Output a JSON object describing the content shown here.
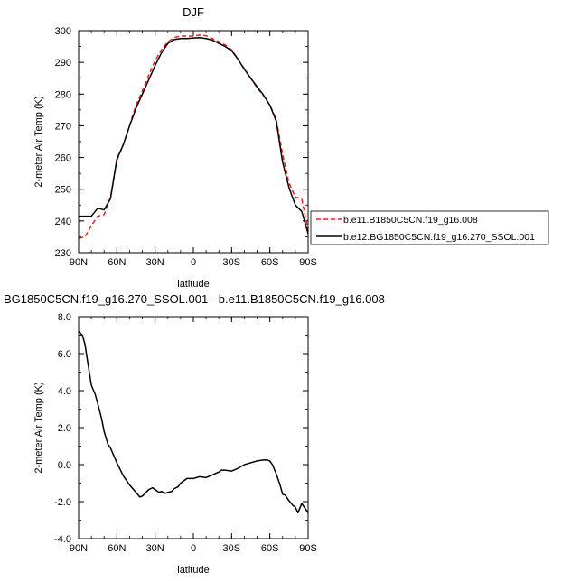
{
  "chart_data": [
    {
      "type": "line",
      "title": "DJF",
      "xlabel": "latitude",
      "ylabel": "2-meter Air Temp (K)",
      "xlim": [
        90,
        -90
      ],
      "ylim": [
        230,
        300
      ],
      "xtick_values": [
        90,
        60,
        30,
        0,
        -30,
        -60,
        -90
      ],
      "xtick_labels": [
        "90N",
        "60N",
        "30N",
        "0",
        "30S",
        "60S",
        "90S"
      ],
      "ytick_values": [
        230,
        240,
        250,
        260,
        270,
        280,
        290,
        300
      ],
      "ytick_labels": [
        "230",
        "240",
        "250",
        "260",
        "270",
        "280",
        "290",
        "300"
      ],
      "grid": false,
      "legend": "right",
      "series": [
        {
          "name": "b.e11.B1850C5CN.f19_g16.008",
          "color": "#e8211d",
          "dash": "dashed",
          "x": [
            90,
            85,
            80,
            75,
            70,
            65,
            60,
            55,
            50,
            45,
            40,
            35,
            30,
            25,
            20,
            15,
            10,
            5,
            0,
            -5,
            -10,
            -15,
            -20,
            -25,
            -30,
            -35,
            -40,
            -45,
            -50,
            -55,
            -60,
            -65,
            -70,
            -75,
            -80,
            -85,
            -90
          ],
          "y": [
            234.5,
            235,
            238.5,
            241.5,
            242,
            247.5,
            259,
            264,
            270,
            276.5,
            281,
            286,
            290.5,
            294,
            296.5,
            297.8,
            298.3,
            298.3,
            298.3,
            298.6,
            298.4,
            297.5,
            296.5,
            295.5,
            294,
            291,
            288,
            285,
            282,
            279.5,
            276.5,
            272,
            261,
            252,
            247.5,
            247,
            237
          ]
        },
        {
          "name": "b.e12.BG1850C5CN.f19_g16.270_SSOL.001",
          "color": "#000000",
          "dash": "solid",
          "x": [
            90,
            85,
            80,
            75,
            70,
            65,
            60,
            55,
            50,
            45,
            40,
            35,
            30,
            25,
            20,
            15,
            10,
            5,
            0,
            -5,
            -10,
            -15,
            -20,
            -25,
            -30,
            -35,
            -40,
            -45,
            -50,
            -55,
            -60,
            -65,
            -70,
            -75,
            -80,
            -85,
            -90
          ],
          "y": [
            241.5,
            241.5,
            241.5,
            244,
            243.5,
            247,
            259.5,
            264,
            270,
            275.5,
            280,
            284.5,
            289,
            293,
            296,
            297.2,
            297.5,
            297.5,
            297.7,
            297.8,
            297.5,
            297,
            296,
            295,
            293.7,
            291,
            287.8,
            285,
            282.3,
            279.7,
            276.5,
            271.5,
            258.5,
            250.5,
            245,
            243,
            236
          ]
        }
      ]
    },
    {
      "type": "line",
      "title": "BG1850C5CN.f19_g16.270_SSOL.001 - b.e11.B1850C5CN.f19_g16.008",
      "xlabel": "latitude",
      "ylabel": "2-meter Air Temp (K)",
      "xlim": [
        90,
        -90
      ],
      "ylim": [
        -4,
        8
      ],
      "xtick_values": [
        90,
        60,
        30,
        0,
        -30,
        -60,
        -90
      ],
      "xtick_labels": [
        "90N",
        "60N",
        "30N",
        "0",
        "30S",
        "60S",
        "90S"
      ],
      "ytick_values": [
        -4,
        -2,
        0,
        2,
        4,
        6,
        8
      ],
      "ytick_labels": [
        "-4.0",
        "-2.0",
        "0.0",
        "2.0",
        "4.0",
        "6.0",
        "8.0"
      ],
      "grid": false,
      "series": [
        {
          "color": "#000000",
          "dash": "solid",
          "x": [
            90,
            87,
            85,
            83,
            80,
            77,
            75,
            72,
            70,
            67,
            65,
            60,
            55,
            50,
            45,
            42,
            40,
            35,
            32,
            30,
            27,
            25,
            22,
            20,
            17,
            15,
            12,
            10,
            5,
            0,
            -5,
            -10,
            -15,
            -20,
            -22,
            -25,
            -30,
            -35,
            -40,
            -45,
            -50,
            -55,
            -58,
            -60,
            -62,
            -65,
            -68,
            -70,
            -72,
            -75,
            -78,
            -80,
            -82,
            -85,
            -87,
            -90
          ],
          "y": [
            7.2,
            7.0,
            6.5,
            5.6,
            4.3,
            3.8,
            3.3,
            2.5,
            1.8,
            1.1,
            0.9,
            0.1,
            -0.6,
            -1.1,
            -1.5,
            -1.75,
            -1.7,
            -1.35,
            -1.25,
            -1.35,
            -1.5,
            -1.45,
            -1.55,
            -1.5,
            -1.45,
            -1.3,
            -1.2,
            -1.0,
            -0.75,
            -0.75,
            -0.65,
            -0.7,
            -0.55,
            -0.4,
            -0.3,
            -0.3,
            -0.35,
            -0.2,
            0.0,
            0.1,
            0.2,
            0.25,
            0.25,
            0.2,
            0.0,
            -0.5,
            -1.1,
            -1.6,
            -1.65,
            -1.95,
            -2.2,
            -2.3,
            -2.6,
            -2.1,
            -2.3,
            -2.6
          ]
        }
      ]
    }
  ]
}
